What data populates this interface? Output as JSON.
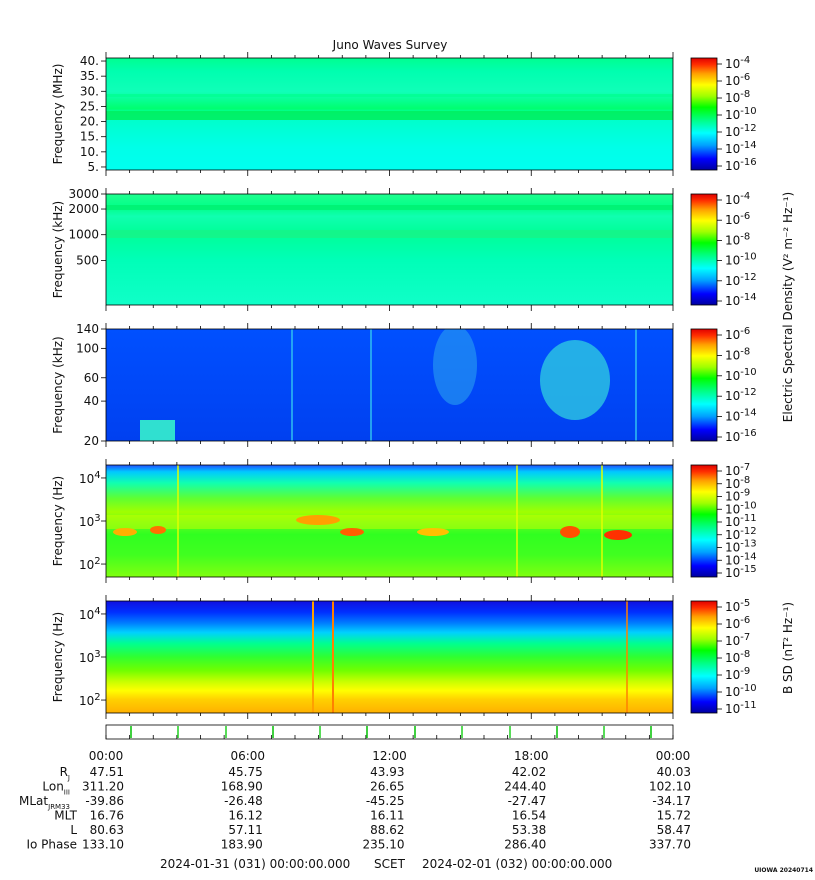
{
  "title": "Juno Waves Survey",
  "colors": {
    "cbar": [
      "#0000a0",
      "#0000ff",
      "#00a0ff",
      "#00ffff",
      "#00ff80",
      "#00ff00",
      "#a0ff00",
      "#ffff00",
      "#ffa000",
      "#ff3000",
      "#e00000"
    ]
  },
  "panels": [
    {
      "ylabel": "Frequency (MHz)",
      "yticks": [
        "40.",
        "35.",
        "30.",
        "25.",
        "20.",
        "15.",
        "10.",
        "5."
      ],
      "cbar_ticks": [
        {
          "b": "10",
          "e": "-4"
        },
        {
          "b": "10",
          "e": "-6"
        },
        {
          "b": "10",
          "e": "-8"
        },
        {
          "b": "10",
          "e": "-10"
        },
        {
          "b": "10",
          "e": "-12"
        },
        {
          "b": "10",
          "e": "-14"
        },
        {
          "b": "10",
          "e": "-16"
        }
      ]
    },
    {
      "ylabel": "Frequency (kHz)",
      "yticks": [
        "3000",
        "2000",
        "1000",
        "500"
      ],
      "cbar_ticks": [
        {
          "b": "10",
          "e": "-4"
        },
        {
          "b": "10",
          "e": "-6"
        },
        {
          "b": "10",
          "e": "-8"
        },
        {
          "b": "10",
          "e": "-10"
        },
        {
          "b": "10",
          "e": "-12"
        },
        {
          "b": "10",
          "e": "-14"
        }
      ]
    },
    {
      "ylabel": "Frequency (kHz)",
      "yticks": [
        "140",
        "100",
        "60",
        "40",
        "20"
      ],
      "cbar_ticks": [
        {
          "b": "10",
          "e": "-6"
        },
        {
          "b": "10",
          "e": "-8"
        },
        {
          "b": "10",
          "e": "-10"
        },
        {
          "b": "10",
          "e": "-12"
        },
        {
          "b": "10",
          "e": "-14"
        },
        {
          "b": "10",
          "e": "-16"
        }
      ]
    },
    {
      "ylabel": "Frequency (Hz)",
      "yticks": [
        {
          "b": "10",
          "e": "4"
        },
        {
          "b": "10",
          "e": "3"
        },
        {
          "b": "10",
          "e": "2"
        }
      ],
      "cbar_ticks": [
        {
          "b": "10",
          "e": "-7"
        },
        {
          "b": "10",
          "e": "-8"
        },
        {
          "b": "10",
          "e": "-9"
        },
        {
          "b": "10",
          "e": "-10"
        },
        {
          "b": "10",
          "e": "-11"
        },
        {
          "b": "10",
          "e": "-12"
        },
        {
          "b": "10",
          "e": "-13"
        },
        {
          "b": "10",
          "e": "-14"
        },
        {
          "b": "10",
          "e": "-15"
        }
      ]
    },
    {
      "ylabel": "Frequency (Hz)",
      "yticks": [
        {
          "b": "10",
          "e": "4"
        },
        {
          "b": "10",
          "e": "3"
        },
        {
          "b": "10",
          "e": "2"
        }
      ],
      "cbar_ticks": [
        {
          "b": "10",
          "e": "-5"
        },
        {
          "b": "10",
          "e": "-6"
        },
        {
          "b": "10",
          "e": "-7"
        },
        {
          "b": "10",
          "e": "-8"
        },
        {
          "b": "10",
          "e": "-9"
        },
        {
          "b": "10",
          "e": "-10"
        },
        {
          "b": "10",
          "e": "-11"
        }
      ]
    }
  ],
  "cbar_label_e": "Electric Spectral Density (V² m⁻² Hz⁻¹)",
  "cbar_label_b": "B SD (nT² Hz⁻¹)",
  "ephemeris": {
    "times": [
      "00:00",
      "06:00",
      "12:00",
      "18:00",
      "00:00"
    ],
    "rows": [
      {
        "label": "R",
        "sub": "J",
        "values": [
          "47.51",
          "45.75",
          "43.93",
          "42.02",
          "40.03"
        ]
      },
      {
        "label": "Lon",
        "sub": "III",
        "values": [
          "311.20",
          "168.90",
          "26.65",
          "244.40",
          "102.10"
        ]
      },
      {
        "label": "MLat",
        "sub": "JRM33",
        "values": [
          "-39.86",
          "-26.48",
          "-45.25",
          "-27.47",
          "-34.17"
        ]
      },
      {
        "label": "MLT",
        "sub": "",
        "values": [
          "16.76",
          "16.12",
          "16.11",
          "16.54",
          "15.72"
        ]
      },
      {
        "label": "L",
        "sub": "",
        "values": [
          "80.63",
          "57.11",
          "88.62",
          "53.38",
          "58.47"
        ]
      },
      {
        "label": "Io Phase",
        "sub": "",
        "values": [
          "133.10",
          "183.90",
          "235.10",
          "286.40",
          "337.70"
        ]
      }
    ]
  },
  "footer": {
    "start": "2024-01-31 (031) 00:00:00.000",
    "scet": "SCET",
    "end": "2024-02-01 (032) 00:00:00.000",
    "stamp": "UIOWA 20240714"
  },
  "chart_data": {
    "type": "heatmap",
    "title": "Juno Waves Survey",
    "time_range": [
      "2024-01-31 (031) 00:00:00.000",
      "2024-02-01 (032) 00:00:00.000"
    ],
    "x_ticks": [
      "00:00",
      "06:00",
      "12:00",
      "18:00",
      "00:00"
    ],
    "series": [
      {
        "ylabel": "Frequency (MHz)",
        "ylim": [
          4,
          41
        ],
        "cbar_range": [
          "10^-17",
          "10^-4"
        ]
      },
      {
        "ylabel": "Frequency (kHz)",
        "ylim": [
          150,
          3000
        ],
        "yscale": "log",
        "cbar_range": [
          "10^-15",
          "10^-4"
        ]
      },
      {
        "ylabel": "Frequency (kHz)",
        "ylim": [
          20,
          140
        ],
        "yscale": "log",
        "cbar_range": [
          "10^-16",
          "10^-6"
        ]
      },
      {
        "ylabel": "Frequency (Hz)",
        "ylim": [
          50,
          20000
        ],
        "yscale": "log",
        "cbar_range": [
          "10^-15",
          "10^-7"
        ]
      },
      {
        "ylabel": "Frequency (Hz)",
        "ylim": [
          50,
          20000
        ],
        "yscale": "log",
        "cbar_range": [
          "10^-11",
          "10^-4.6"
        ]
      }
    ]
  }
}
